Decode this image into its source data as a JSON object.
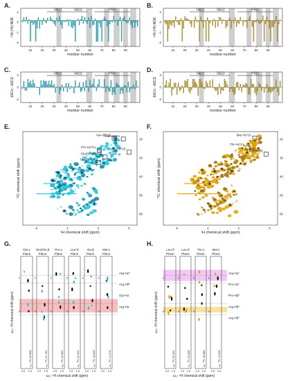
{
  "panels": {
    "A": {
      "letter": "A.",
      "ylabel": "¹⁵N {¹H}-NOE",
      "xlabel": "residue number",
      "domains": [
        "TAD1",
        "TAD2",
        "PRD"
      ],
      "color": "#00bcd4"
    },
    "B": {
      "letter": "B.",
      "ylabel": "¹⁵N {¹H}-NOE",
      "xlabel": "residue number",
      "domains": [
        "TAD1",
        "TAD2",
        "PRD"
      ],
      "color": "#c8a000"
    },
    "C": {
      "letter": "C.",
      "ylabel": "ΔδCα - ΔδCβ",
      "xlabel": "residue number",
      "domains": [
        "TAD1",
        "TAD2",
        "PRD"
      ],
      "color": "#00bcd4"
    },
    "D": {
      "letter": "D.",
      "ylabel": "ΔδCα - ΔδCβ",
      "xlabel": "residue number",
      "domains": [
        "TAD1",
        "TAD2",
        "PRD"
      ],
      "color": "#c8a000"
    },
    "E": {
      "letter": "E.",
      "ylabel": "¹³C chemical shift (ppm)",
      "xlabel": "¹H chemical shift (ppm)",
      "annotations": [
        "Met-Hε*Cε",
        "Ala-Hβ*Cβ",
        "Leu-Hδ*Cδ",
        "Pro-Hγ*Cγ",
        "Glu/Gln-Hβ*Cβ",
        "Glu-Hγ*Cγ"
      ]
    },
    "F": {
      "letter": "F.",
      "ylabel": "¹³C chemical shift (ppm)",
      "xlabel": "¹H chemical shift (ppm)",
      "annotations": [
        "Met-Hε*Cε",
        "Thr-Hγ*Cγ",
        "Leu-Hδ*Cδ"
      ]
    },
    "G": {
      "letter": "G.",
      "ylabel": "ω₂- ¹H chemical shift (ppm)",
      "xlabel": "ω₂- ¹H chemical shift (ppm)",
      "strips": [
        {
          "title": "Glu-γ",
          "sub": "Plane",
          "c13": "32.666"
        },
        {
          "title": "Glu/Gln-β",
          "sub": "Plane",
          "c13": "27.784"
        },
        {
          "title": "Pro-γ",
          "sub": "Plane",
          "c13": "24.860"
        },
        {
          "title": "Leu-δ",
          "sub": "Plane",
          "c13": "22.324"
        },
        {
          "title": "Ala-β",
          "sub": "Plane",
          "c13": "16.639"
        },
        {
          "title": "Met-ε",
          "sub": "Plane",
          "c13": "14.276"
        }
      ],
      "c13_label": "ω₁- ¹³C",
      "right_labels": [
        "Arg-Hγ*",
        "Arg-Hδ*",
        "Gly-Hα",
        "Arg-Hα"
      ]
    },
    "H": {
      "letter": "H.",
      "ylabel": "ω₂- ¹H chemical shift (ppm)",
      "xlabel": "ω₂- ¹H chemical shift (ppm)",
      "strips": [
        {
          "title": "Leu-δ",
          "sub": "Plane",
          "c13": "22.294"
        },
        {
          "title": "Leu-δ",
          "sub": "Plane",
          "c13": "20.506"
        },
        {
          "title": "Thr-γ",
          "sub": "Plane",
          "c13": "18.886"
        },
        {
          "title": "Met-ε",
          "sub": "Plane",
          "c13": "14.226"
        }
      ],
      "c13_label": "ω₁- ¹³C",
      "right_labels": [
        "Arg-Hγ*",
        "Pro-Hγ*",
        "Pro-Hβ*",
        "Arg-Hδ*",
        "Arg-Hδ*"
      ]
    }
  },
  "axes": {
    "residue_ticks": [
      "10",
      "20",
      "30",
      "40",
      "50",
      "60",
      "70",
      "80",
      "90"
    ],
    "noe_ticks": [
      "1",
      "0",
      "-1",
      "-2"
    ],
    "cs_ticks": [
      "2",
      "0",
      "-2"
    ],
    "h_ticks": [
      "6",
      "4",
      "2",
      "0"
    ],
    "c_ticks": [
      "20",
      "30",
      "40",
      "50",
      "60"
    ],
    "strip_h_ticks": [
      "2",
      "4"
    ]
  }
}
